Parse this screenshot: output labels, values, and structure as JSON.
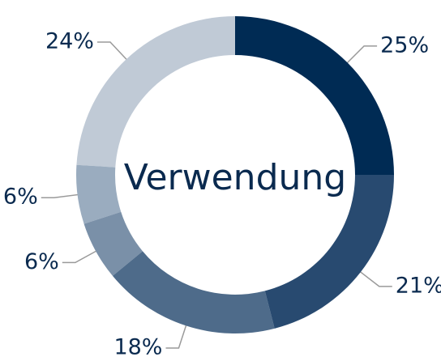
{
  "chart_data": {
    "type": "donut",
    "title": "Verwendung",
    "values": [
      25,
      21,
      18,
      6,
      6,
      24
    ],
    "value_labels": [
      "25%",
      "21%",
      "18%",
      "6%",
      "6%",
      "24%"
    ],
    "colors": [
      "#002b54",
      "#284a70",
      "#4e6b8a",
      "#7a90a8",
      "#9aacbf",
      "#c0cad6"
    ]
  }
}
